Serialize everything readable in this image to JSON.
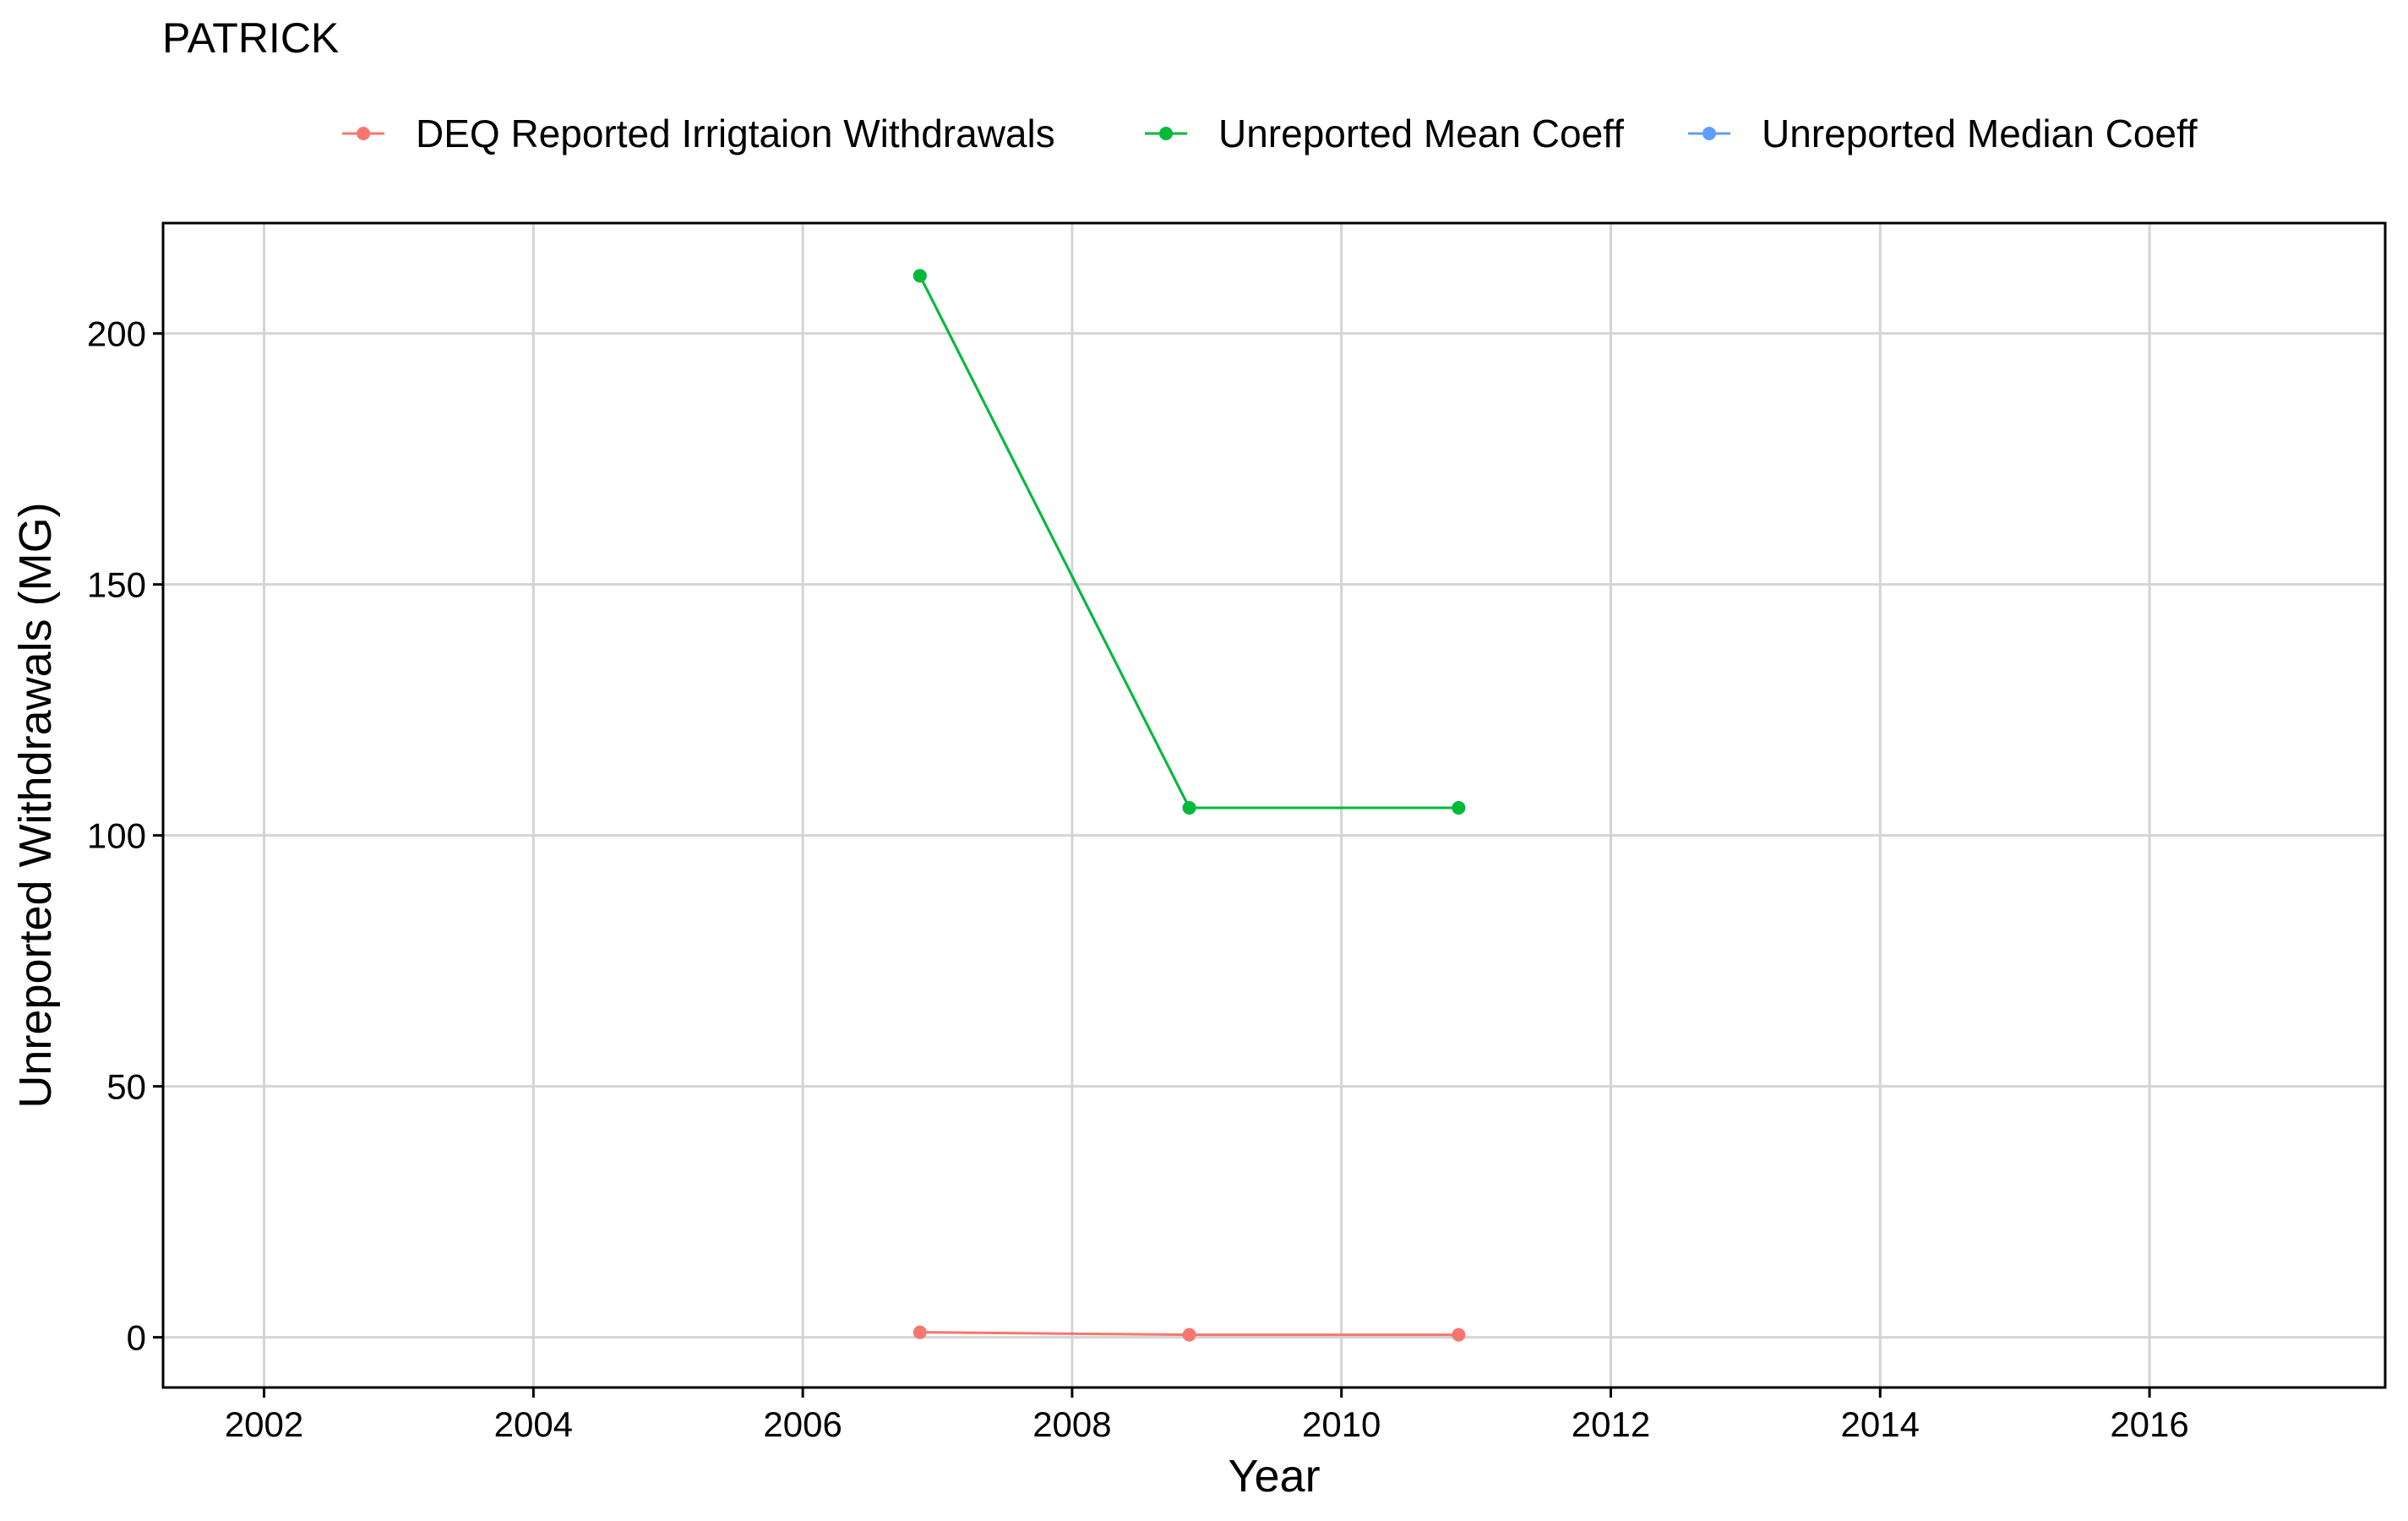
{
  "chart_data": {
    "type": "line",
    "title": "PATRICK",
    "xlabel": "Year",
    "ylabel": "Unreported Withdrawals (MG)",
    "xlim": [
      2001.25,
      2017.75
    ],
    "ylim": [
      -10,
      222
    ],
    "xticks": [
      2002,
      2004,
      2006,
      2008,
      2010,
      2012,
      2014,
      2016
    ],
    "yticks": [
      0,
      50,
      100,
      150,
      200
    ],
    "grid": true,
    "legend_position": "top",
    "series": [
      {
        "name": "DEQ Reported Irrigtaion Withdrawals",
        "color": "#F8766D",
        "x": [
          2006.87,
          2008.87,
          2010.87
        ],
        "y": [
          1.0,
          0.5,
          0.5
        ]
      },
      {
        "name": "Unreported Mean Coeff",
        "color": "#00BA38",
        "x": [
          2006.87,
          2008.87,
          2010.87
        ],
        "y": [
          211.5,
          105.5,
          105.5
        ]
      },
      {
        "name": "Unreported Median Coeff",
        "color": "#619CFF",
        "x": [
          2006.87,
          2008.87,
          2010.87
        ],
        "y": [
          211.5,
          105.5,
          105.5
        ]
      }
    ]
  }
}
